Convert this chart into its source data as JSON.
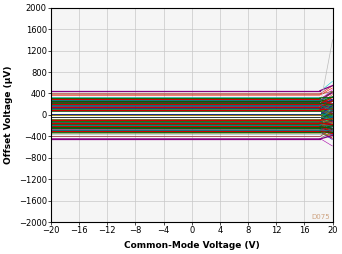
{
  "xlabel": "Common-Mode Voltage (V)",
  "ylabel": "Offset Voltage (µV)",
  "xlim": [
    -20,
    20
  ],
  "ylim": [
    -2000,
    2000
  ],
  "xticks": [
    -20,
    -16,
    -12,
    -8,
    -4,
    0,
    4,
    8,
    12,
    16,
    20
  ],
  "yticks": [
    -2000,
    -1600,
    -1200,
    -800,
    -400,
    0,
    400,
    800,
    1200,
    1600,
    2000
  ],
  "grid_color": "#c8c8c8",
  "bg_color": "#ffffff",
  "plot_bg": "#f5f5f5",
  "watermark": "D075",
  "x_flat_end": 18.2,
  "colors_pool": [
    "#cc0000",
    "#880000",
    "#ee2200",
    "#ff0000",
    "#1a1a1a",
    "#333333",
    "#555555",
    "#222222",
    "#006600",
    "#004400",
    "#228800",
    "#00aa00",
    "#800080",
    "#aa00aa",
    "#008080",
    "#00aaaa",
    "#0000cc",
    "#0055cc",
    "#cc6600",
    "#aaaa00",
    "#ff6600",
    "#ff00ff",
    "#00cccc",
    "#666666",
    "#884400",
    "#004488",
    "#880044",
    "#448800",
    "#cc3300",
    "#003399",
    "#996600",
    "#009966"
  ]
}
